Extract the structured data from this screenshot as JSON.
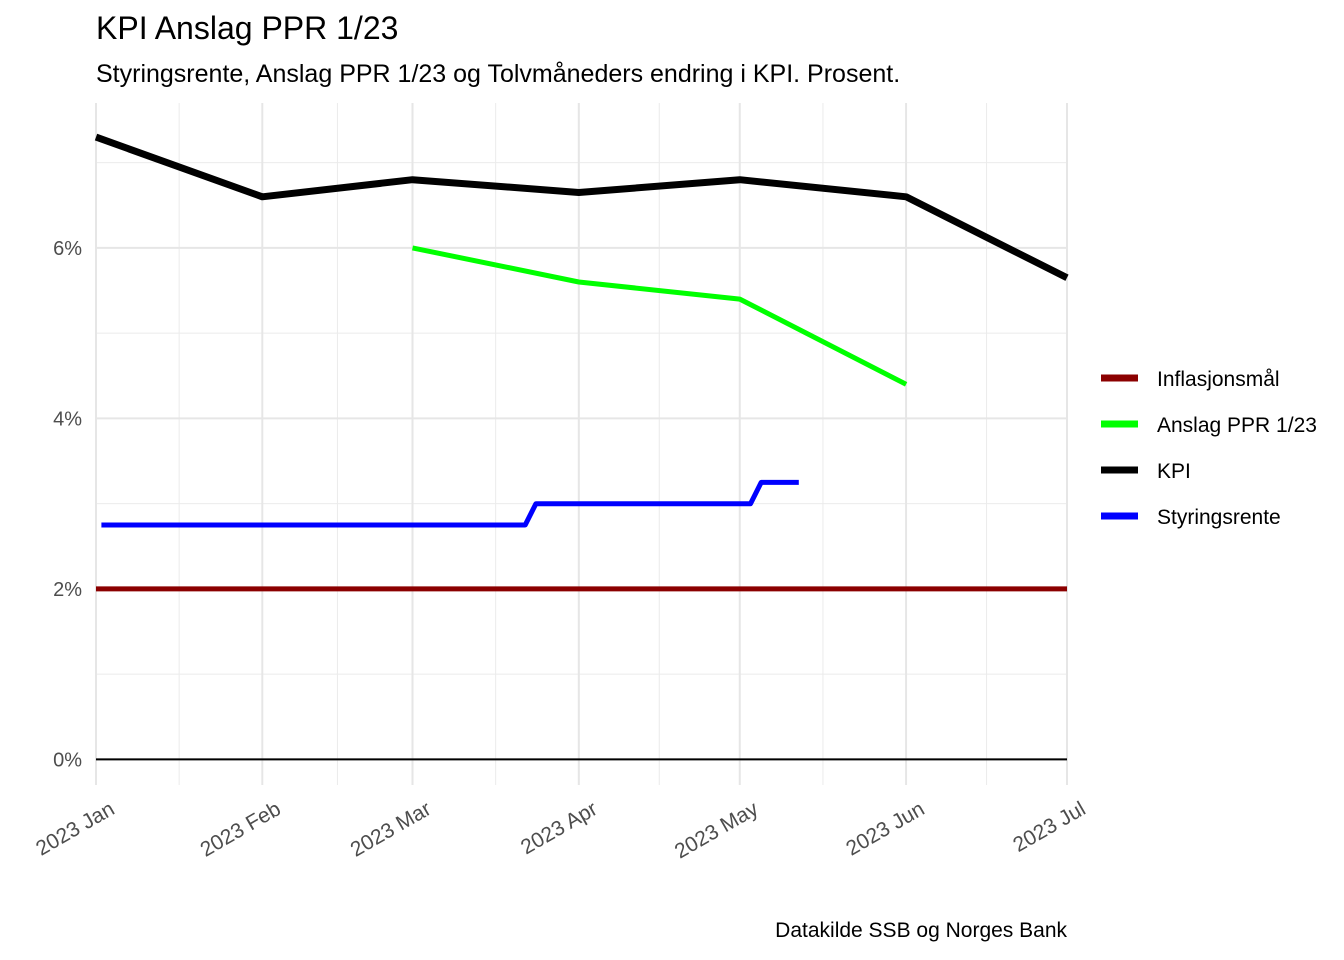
{
  "title": "KPI Anslag PPR 1/23",
  "subtitle": "Styringsrente, Anslag PPR 1/23 og Tolvmåneders endring i KPI. Prosent.",
  "caption": "Datakilde SSB og Norges Bank",
  "chart_data": {
    "type": "line",
    "title": "KPI Anslag PPR 1/23",
    "subtitle": "Styringsrente, Anslag PPR 1/23 og Tolvmåneders endring i KPI. Prosent.",
    "xlabel": "",
    "ylabel": "",
    "xlim": [
      "2023-01-01",
      "2023-07-01"
    ],
    "ylim": [
      -0.3,
      7.7
    ],
    "y_ticks": [
      0,
      2,
      4,
      6
    ],
    "y_tick_labels": [
      "0%",
      "2%",
      "4%",
      "6%"
    ],
    "x_ticks": [
      "2023-01-01",
      "2023-02-01",
      "2023-03-01",
      "2023-04-01",
      "2023-05-01",
      "2023-06-01",
      "2023-07-01"
    ],
    "x_tick_labels": [
      "2023 Jan",
      "2023 Feb",
      "2023 Mar",
      "2023 Apr",
      "2023 May",
      "2023 Jun",
      "2023 Jul"
    ],
    "grid": true,
    "legend_position": "right",
    "series": [
      {
        "name": "Inflasjonsmål",
        "color": "#8b0000",
        "points": [
          [
            "2023-01-01",
            2.0
          ],
          [
            "2023-07-01",
            2.0
          ]
        ]
      },
      {
        "name": "Anslag PPR 1/23",
        "color": "#00ff00",
        "points": [
          [
            "2023-03-01",
            6.0
          ],
          [
            "2023-04-01",
            5.6
          ],
          [
            "2023-05-01",
            5.4
          ],
          [
            "2023-06-01",
            4.4
          ]
        ]
      },
      {
        "name": "KPI",
        "color": "#000000",
        "points": [
          [
            "2023-01-01",
            7.3
          ],
          [
            "2023-02-01",
            6.6
          ],
          [
            "2023-03-01",
            6.8
          ],
          [
            "2023-04-01",
            6.65
          ],
          [
            "2023-05-01",
            6.8
          ],
          [
            "2023-06-01",
            6.6
          ],
          [
            "2023-07-01",
            5.65
          ]
        ]
      },
      {
        "name": "Styringsrente",
        "color": "#0000ff",
        "points": [
          [
            "2023-01-02",
            2.75
          ],
          [
            "2023-03-22",
            2.75
          ],
          [
            "2023-03-24",
            3.0
          ],
          [
            "2023-05-03",
            3.0
          ],
          [
            "2023-05-05",
            3.25
          ],
          [
            "2023-05-12",
            3.25
          ]
        ]
      }
    ]
  }
}
